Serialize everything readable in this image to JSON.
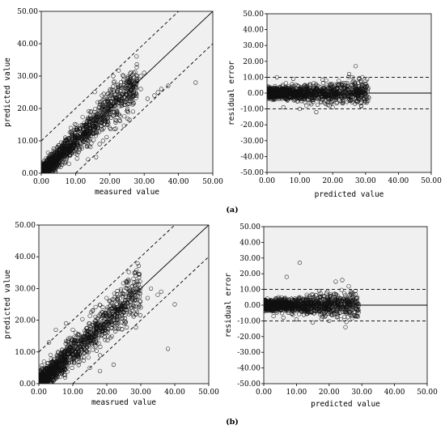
{
  "panel_labels": [
    "(a)",
    "(b)"
  ],
  "chart_data": [
    {
      "type": "scatter",
      "panel": "a-left",
      "xlabel": "measured value",
      "ylabel": "predicted value",
      "xlim": [
        0,
        50
      ],
      "ylim": [
        0,
        50
      ],
      "xticks": [
        "0.00",
        "10.00",
        "20.00",
        "30.00",
        "40.00",
        "50.00"
      ],
      "yticks": [
        "0.00",
        "10.00",
        "20.00",
        "30.00",
        "40.00",
        "50.00"
      ],
      "reference_lines": [
        {
          "style": "solid",
          "points": [
            [
              0,
              0
            ],
            [
              50,
              50
            ]
          ]
        },
        {
          "style": "dashed",
          "points": [
            [
              0,
              10
            ],
            [
              40,
              50
            ]
          ]
        },
        {
          "style": "dashed",
          "points": [
            [
              10,
              0
            ],
            [
              50,
              40
            ]
          ]
        }
      ],
      "cloud": {
        "x_range": [
          0.3,
          28
        ],
        "slope": 1.0,
        "spread": 3.5
      },
      "points": [
        [
          45,
          28
        ],
        [
          37,
          27
        ],
        [
          35,
          26
        ],
        [
          33,
          24
        ],
        [
          30,
          31
        ],
        [
          29,
          30
        ],
        [
          28,
          29
        ],
        [
          31,
          23
        ],
        [
          34,
          25
        ],
        [
          26,
          27
        ],
        [
          27,
          31
        ],
        [
          22,
          23
        ],
        [
          25,
          28
        ],
        [
          18,
          10
        ],
        [
          17,
          9
        ],
        [
          16,
          5
        ],
        [
          20,
          14
        ],
        [
          21,
          30
        ],
        [
          24,
          30
        ],
        [
          29,
          26
        ]
      ],
      "grid": false
    },
    {
      "type": "scatter",
      "panel": "a-right",
      "xlabel": "predicted value",
      "ylabel": "residual error",
      "xlim": [
        0,
        50
      ],
      "ylim": [
        -50,
        50
      ],
      "xticks": [
        "0.00",
        "10.00",
        "20.00",
        "30.00",
        "40.00",
        "50.00"
      ],
      "yticks": [
        "50.00",
        "40.00",
        "30.00",
        "20.00",
        "10.00",
        "0.00",
        "-10.00",
        "-20.00",
        "-30.00",
        "-40.00",
        "-50.00"
      ],
      "reference_lines": [
        {
          "style": "solid",
          "points": [
            [
              0,
              0
            ],
            [
              50,
              0
            ]
          ]
        },
        {
          "style": "dashed",
          "points": [
            [
              0,
              10
            ],
            [
              50,
              10
            ]
          ]
        },
        {
          "style": "dashed",
          "points": [
            [
              0,
              -10
            ],
            [
              50,
              -10
            ]
          ]
        }
      ],
      "cloud": {
        "x_range": [
          0.3,
          31
        ],
        "center": 0,
        "spread": 4
      },
      "points": [
        [
          27,
          17
        ],
        [
          25,
          12
        ],
        [
          26,
          10
        ],
        [
          28,
          9
        ],
        [
          29,
          5
        ],
        [
          30,
          4
        ],
        [
          31,
          -3
        ],
        [
          30,
          -5
        ],
        [
          28,
          -4
        ],
        [
          23,
          -6
        ],
        [
          20,
          -9
        ],
        [
          15,
          -12
        ],
        [
          12,
          -8
        ],
        [
          10,
          -10
        ],
        [
          5,
          -9
        ],
        [
          3,
          10
        ],
        [
          8,
          9
        ],
        [
          18,
          8
        ]
      ],
      "grid": false
    },
    {
      "type": "scatter",
      "panel": "b-left",
      "xlabel": "measrued value",
      "ylabel": "predicted value",
      "xlim": [
        0,
        50
      ],
      "ylim": [
        0,
        50
      ],
      "xticks": [
        "0.00",
        "10.00",
        "20.00",
        "30.00",
        "40.00",
        "50.00"
      ],
      "yticks": [
        "0.00",
        "10.00",
        "20.00",
        "30.00",
        "40.00",
        "50.00"
      ],
      "reference_lines": [
        {
          "style": "solid",
          "points": [
            [
              0,
              0
            ],
            [
              50,
              50
            ]
          ]
        },
        {
          "style": "dashed",
          "points": [
            [
              0,
              10
            ],
            [
              40,
              50
            ]
          ]
        },
        {
          "style": "dashed",
          "points": [
            [
              10,
              0
            ],
            [
              50,
              40
            ]
          ]
        }
      ],
      "cloud": {
        "x_range": [
          0.3,
          30
        ],
        "slope": 1.0,
        "spread": 4
      },
      "points": [
        [
          38,
          11
        ],
        [
          40,
          25
        ],
        [
          36,
          29
        ],
        [
          35,
          28
        ],
        [
          33,
          30
        ],
        [
          32,
          27
        ],
        [
          30,
          24
        ],
        [
          28,
          29
        ],
        [
          26,
          30
        ],
        [
          24,
          25
        ],
        [
          22,
          6
        ],
        [
          18,
          4
        ],
        [
          15,
          5
        ],
        [
          10,
          17
        ],
        [
          8,
          19
        ],
        [
          5,
          17
        ],
        [
          3,
          13
        ]
      ],
      "grid": false
    },
    {
      "type": "scatter",
      "panel": "b-right",
      "xlabel": "predicted value",
      "ylabel": "residual error",
      "xlim": [
        0,
        50
      ],
      "ylim": [
        -50,
        50
      ],
      "xticks": [
        "0.00",
        "10.00",
        "20.00",
        "30.00",
        "40.00",
        "50.00"
      ],
      "yticks": [
        "50.00",
        "40.00",
        "30.00",
        "20.00",
        "10.00",
        "0.00",
        "-10.00",
        "-20.00",
        "-30.00",
        "-40.00",
        "-50.00"
      ],
      "reference_lines": [
        {
          "style": "solid",
          "points": [
            [
              0,
              0
            ],
            [
              50,
              0
            ]
          ]
        },
        {
          "style": "dashed",
          "points": [
            [
              0,
              10
            ],
            [
              50,
              10
            ]
          ]
        },
        {
          "style": "dashed",
          "points": [
            [
              0,
              -10
            ],
            [
              50,
              -10
            ]
          ]
        }
      ],
      "cloud": {
        "x_range": [
          0.3,
          29
        ],
        "center": 0,
        "spread": 4
      },
      "points": [
        [
          11,
          27
        ],
        [
          7,
          18
        ],
        [
          24,
          16
        ],
        [
          22,
          15
        ],
        [
          26,
          12
        ],
        [
          28,
          9
        ],
        [
          27,
          -7
        ],
        [
          25,
          -14
        ],
        [
          20,
          -10
        ],
        [
          15,
          -11
        ],
        [
          10,
          -9
        ],
        [
          6,
          -8
        ],
        [
          3,
          -7
        ],
        [
          17,
          9
        ]
      ],
      "grid": false
    }
  ]
}
